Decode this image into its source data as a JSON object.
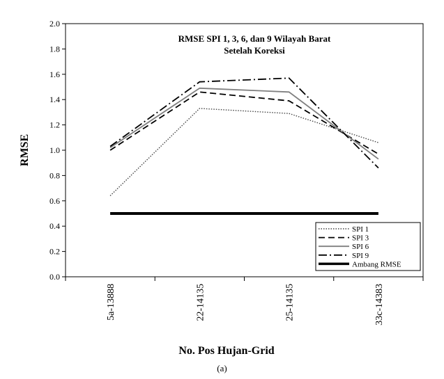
{
  "chart_data": {
    "type": "line",
    "title": "RMSE  SPI 1, 3, 6, dan  9 Wilayah Barat",
    "subtitle": "Setelah Koreksi",
    "xlabel": "No. Pos Hujan-Grid",
    "ylabel": "RMSE",
    "categories": [
      "5a-13888",
      "22-14135",
      "25-14135",
      "33c-14383"
    ],
    "ylim": [
      0.0,
      2.0
    ],
    "yticks": [
      "0.0",
      "0.2",
      "0.4",
      "0.6",
      "0.8",
      "1.0",
      "1.2",
      "1.4",
      "1.6",
      "1.8",
      "2.0"
    ],
    "grid": false,
    "legend_position": "bottom-right",
    "series": [
      {
        "name": "SPI 1",
        "values": [
          0.64,
          1.33,
          1.29,
          1.06
        ],
        "style": "dotted",
        "color": "#444444"
      },
      {
        "name": "SPI 3",
        "values": [
          1.0,
          1.46,
          1.39,
          0.97
        ],
        "style": "dashed",
        "color": "#000000"
      },
      {
        "name": "SPI 6",
        "values": [
          1.02,
          1.49,
          1.46,
          0.93
        ],
        "style": "solid",
        "color": "#7f7f7f"
      },
      {
        "name": "SPI 9",
        "values": [
          1.03,
          1.54,
          1.57,
          0.86
        ],
        "style": "dashdot",
        "color": "#000000"
      },
      {
        "name": "Ambang RMSE",
        "values": [
          0.5,
          0.5,
          0.5,
          0.5
        ],
        "style": "thick",
        "color": "#000000"
      }
    ]
  },
  "caption": "(a)"
}
